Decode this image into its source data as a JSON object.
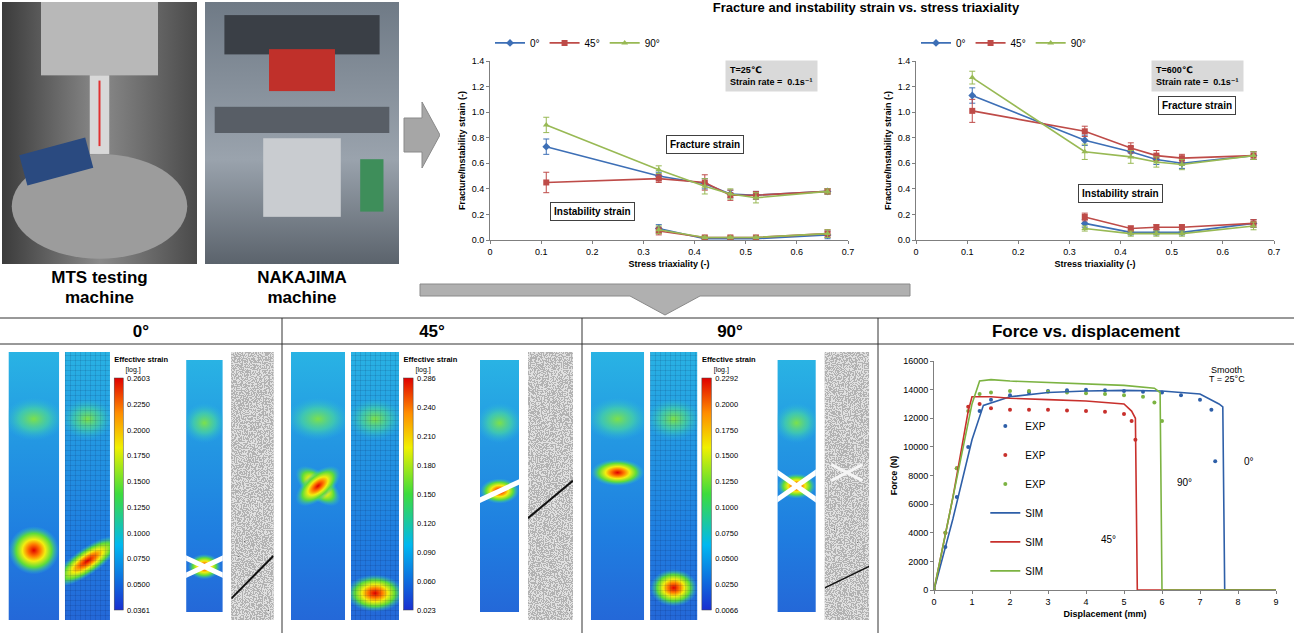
{
  "header": {
    "title": "Fracture and instability strain vs. stress triaxiality"
  },
  "photos": [
    {
      "label": "MTS testing machine"
    },
    {
      "label": "NAKAJIMA machine"
    }
  ],
  "chart_data": [
    {
      "type": "line",
      "x_label": "Stress triaxiality (-)",
      "y_label": "Fracture/Instability strain (-)",
      "x": [
        0.11,
        0.33,
        0.42,
        0.47,
        0.52,
        0.66
      ],
      "series": [
        {
          "name": "0°",
          "color": "#3d6fb6",
          "marker": "diamond",
          "line_style": "solid",
          "values": [
            0.73,
            0.5,
            0.44,
            0.36,
            0.35,
            0.38
          ],
          "error": [
            0.06,
            0.03,
            0.04,
            0.03,
            0.03,
            0.02
          ]
        },
        {
          "name": "45°",
          "color": "#be4b48",
          "marker": "square",
          "line_style": "solid",
          "values": [
            0.45,
            0.48,
            0.45,
            0.35,
            0.35,
            0.38
          ],
          "error": [
            0.08,
            0.03,
            0.06,
            0.04,
            0.03,
            0.02
          ]
        },
        {
          "name": "90°",
          "color": "#98b954",
          "marker": "triangle",
          "line_style": "solid",
          "values": [
            0.9,
            0.55,
            0.42,
            0.36,
            0.33,
            0.38
          ],
          "error": [
            0.06,
            0.03,
            0.06,
            0.04,
            0.04,
            0.02
          ]
        },
        {
          "name": "0°",
          "color": "#3d6fb6",
          "marker": "diamond",
          "line_style": "solid",
          "values": [
            null,
            0.09,
            0.01,
            0.01,
            0.01,
            0.04
          ],
          "error": [
            null,
            0.03,
            0.01,
            0.01,
            0.01,
            0.03
          ]
        },
        {
          "name": "45°",
          "color": "#be4b48",
          "marker": "square",
          "line_style": "solid",
          "values": [
            null,
            0.07,
            0.02,
            0.02,
            0.02,
            0.05
          ],
          "error": [
            null,
            0.03,
            0.01,
            0.01,
            0.01,
            0.03
          ]
        },
        {
          "name": "90°",
          "color": "#98b954",
          "marker": "triangle",
          "line_style": "solid",
          "values": [
            null,
            0.08,
            0.02,
            0.02,
            0.02,
            0.05
          ],
          "error": [
            null,
            0.03,
            0.01,
            0.01,
            0.01,
            0.03
          ]
        }
      ],
      "xlim": [
        0,
        0.7
      ],
      "xticks": [
        0,
        0.1,
        0.2,
        0.3,
        0.4,
        0.5,
        0.6,
        0.7
      ],
      "ylim": [
        0,
        1.4
      ],
      "yticks": [
        {
          "value": 0,
          "label": "0.0"
        },
        0.2,
        0.4,
        0.6,
        0.8,
        {
          "value": 1,
          "label": "1.0"
        },
        1.2,
        1.4
      ],
      "grid": false,
      "legend": "top",
      "annotations": [
        "Fracture strain",
        "Instability strain",
        [
          "T=25℃",
          "Strain rate =  0.1s⁻¹"
        ]
      ]
    },
    {
      "type": "line",
      "x_label": "Stress triaxiality (-)",
      "y_label": "Fracture/Instability strain (-)",
      "x": [
        0.11,
        0.33,
        0.42,
        0.47,
        0.52,
        0.66
      ],
      "series": [
        {
          "name": "0°",
          "color": "#3d6fb6",
          "marker": "diamond",
          "line_style": "solid",
          "values": [
            1.13,
            0.78,
            0.69,
            0.63,
            0.6,
            0.66
          ],
          "error": [
            0.06,
            0.04,
            0.04,
            0.04,
            0.04,
            0.03
          ]
        },
        {
          "name": "45°",
          "color": "#be4b48",
          "marker": "square",
          "line_style": "solid",
          "values": [
            1.01,
            0.85,
            0.72,
            0.66,
            0.64,
            0.66
          ],
          "error": [
            0.09,
            0.04,
            0.04,
            0.04,
            0.03,
            0.03
          ]
        },
        {
          "name": "90°",
          "color": "#98b954",
          "marker": "triangle",
          "line_style": "solid",
          "values": [
            1.27,
            0.69,
            0.65,
            0.61,
            0.59,
            0.66
          ],
          "error": [
            0.05,
            0.06,
            0.05,
            0.04,
            0.04,
            0.03
          ]
        },
        {
          "name": "0°",
          "color": "#3d6fb6",
          "marker": "diamond",
          "line_style": "solid",
          "values": [
            null,
            0.13,
            0.06,
            0.06,
            0.06,
            0.13
          ],
          "error": [
            null,
            0.03,
            0.02,
            0.02,
            0.02,
            0.03
          ]
        },
        {
          "name": "45°",
          "color": "#be4b48",
          "marker": "square",
          "line_style": "solid",
          "values": [
            null,
            0.18,
            0.09,
            0.1,
            0.1,
            0.13
          ],
          "error": [
            null,
            0.03,
            0.02,
            0.02,
            0.02,
            0.03
          ]
        },
        {
          "name": "90°",
          "color": "#98b954",
          "marker": "triangle",
          "line_style": "solid",
          "values": [
            null,
            0.09,
            0.05,
            0.05,
            0.05,
            0.11
          ],
          "error": [
            null,
            0.02,
            0.02,
            0.02,
            0.02,
            0.03
          ]
        }
      ],
      "xlim": [
        0,
        0.7
      ],
      "xticks": [
        0,
        0.1,
        0.2,
        0.3,
        0.4,
        0.5,
        0.6,
        0.7
      ],
      "ylim": [
        0,
        1.4
      ],
      "yticks": [
        {
          "value": 0,
          "label": "0.0"
        },
        0.2,
        0.4,
        0.6,
        0.8,
        {
          "value": 1,
          "label": "1.0"
        },
        1.2,
        1.4
      ],
      "grid": false,
      "legend": "top",
      "annotations": [
        "Fracture strain",
        "Instability strain",
        [
          "T=600℃",
          "Strain rate =  0.1s⁻¹"
        ]
      ]
    },
    {
      "type": "line",
      "title": "Force vs. displacement",
      "x_label": "Displacement (mm)",
      "y_label": "Force (N)",
      "series": [
        {
          "name": "EXP",
          "type": "scatter",
          "marker": "circle",
          "color": "#2e5fa8",
          "x": [
            0,
            0.3,
            0.6,
            0.9,
            1.2,
            1.5,
            2,
            2.5,
            3,
            3.5,
            4,
            4.5,
            5,
            5.5,
            6,
            6.5,
            7,
            7.3,
            7.4
          ],
          "values": [
            0,
            3000,
            6500,
            10000,
            12500,
            13300,
            13600,
            13800,
            13900,
            13950,
            14000,
            13950,
            13900,
            13850,
            13800,
            13600,
            13300,
            12600,
            9000
          ]
        },
        {
          "name": "EXP",
          "type": "scatter",
          "marker": "circle",
          "color": "#c8302c",
          "x": [
            0,
            0.3,
            0.6,
            0.9,
            1.2,
            1.5,
            2,
            2.5,
            3,
            3.5,
            4,
            4.5,
            5,
            5.2,
            5.3
          ],
          "values": [
            0,
            4000,
            8500,
            12800,
            13000,
            12700,
            12600,
            12600,
            12600,
            12550,
            12500,
            12450,
            12300,
            11800,
            10500
          ]
        },
        {
          "name": "EXP",
          "type": "scatter",
          "marker": "circle",
          "color": "#7cb342",
          "x": [
            0,
            0.3,
            0.6,
            0.9,
            1.2,
            1.5,
            2,
            2.5,
            3,
            3.5,
            4,
            4.5,
            5,
            5.5,
            5.8,
            6.0
          ],
          "values": [
            0,
            4000,
            8500,
            12500,
            13700,
            13800,
            13900,
            13900,
            13850,
            13800,
            13750,
            13700,
            13600,
            13500,
            13100,
            11800
          ]
        },
        {
          "name": "SIM",
          "type": "line",
          "line_style": "solid",
          "color": "#2e5fa8",
          "x": [
            0,
            0.5,
            1.0,
            1.3,
            2,
            3,
            4,
            5,
            6,
            7,
            7.5,
            7.6,
            7.65,
            9
          ],
          "values": [
            0,
            5000,
            10500,
            12900,
            13500,
            13800,
            13900,
            13950,
            13900,
            13700,
            13000,
            12800,
            0,
            0
          ]
        },
        {
          "name": "SIM",
          "type": "line",
          "line_style": "solid",
          "color": "#c8302c",
          "x": [
            0,
            0.5,
            0.9,
            1.0,
            1.5,
            2,
            3,
            4,
            5,
            5.2,
            5.3,
            5.35,
            9
          ],
          "values": [
            0,
            6500,
            12500,
            13500,
            13500,
            13400,
            13300,
            13200,
            13000,
            12500,
            12000,
            0,
            0
          ]
        },
        {
          "name": "SIM",
          "type": "line",
          "line_style": "solid",
          "color": "#7cb342",
          "x": [
            0,
            0.5,
            1.0,
            1.2,
            1.5,
            2,
            3,
            4,
            5,
            5.8,
            5.95,
            6.0,
            9
          ],
          "values": [
            0,
            6500,
            13000,
            14600,
            14700,
            14600,
            14500,
            14400,
            14300,
            14100,
            13800,
            0,
            0
          ]
        }
      ],
      "xlim": [
        0,
        9
      ],
      "xticks": [
        0,
        1,
        2,
        3,
        4,
        5,
        6,
        7,
        8,
        9
      ],
      "ylim": [
        0,
        16000
      ],
      "yticks": [
        0,
        2000,
        4000,
        6000,
        8000,
        10000,
        12000,
        14000,
        16000
      ],
      "grid": false,
      "legend": "left",
      "annotations": [
        "Smooth",
        "T = 25°C",
        "0°",
        "45°",
        "90°"
      ]
    }
  ],
  "strain_panels": [
    {
      "title": "0°",
      "colorbar_title": "Effective strain",
      "colorbar_unit": "[log.]",
      "colorbar_labels": [
        "0.2603",
        "0.2250",
        "0.2000",
        "0.1750",
        "0.1500",
        "0.1250",
        "0.1000",
        "0.0750",
        "0.0500",
        "0.0361"
      ]
    },
    {
      "title": "45°",
      "colorbar_title": "Effective strain",
      "colorbar_unit": "[log.]",
      "colorbar_labels": [
        "0.286",
        "0.240",
        "0.210",
        "0.180",
        "0.150",
        "0.120",
        "0.090",
        "0.060",
        "0.023"
      ]
    },
    {
      "title": "90°",
      "colorbar_title": "Effective strain",
      "colorbar_unit": "[log.]",
      "colorbar_labels": [
        "0.2292",
        "0.2000",
        "0.1750",
        "0.1500",
        "0.1250",
        "0.1000",
        "0.0750",
        "0.0500",
        "0.0250",
        "0.0066"
      ]
    }
  ]
}
